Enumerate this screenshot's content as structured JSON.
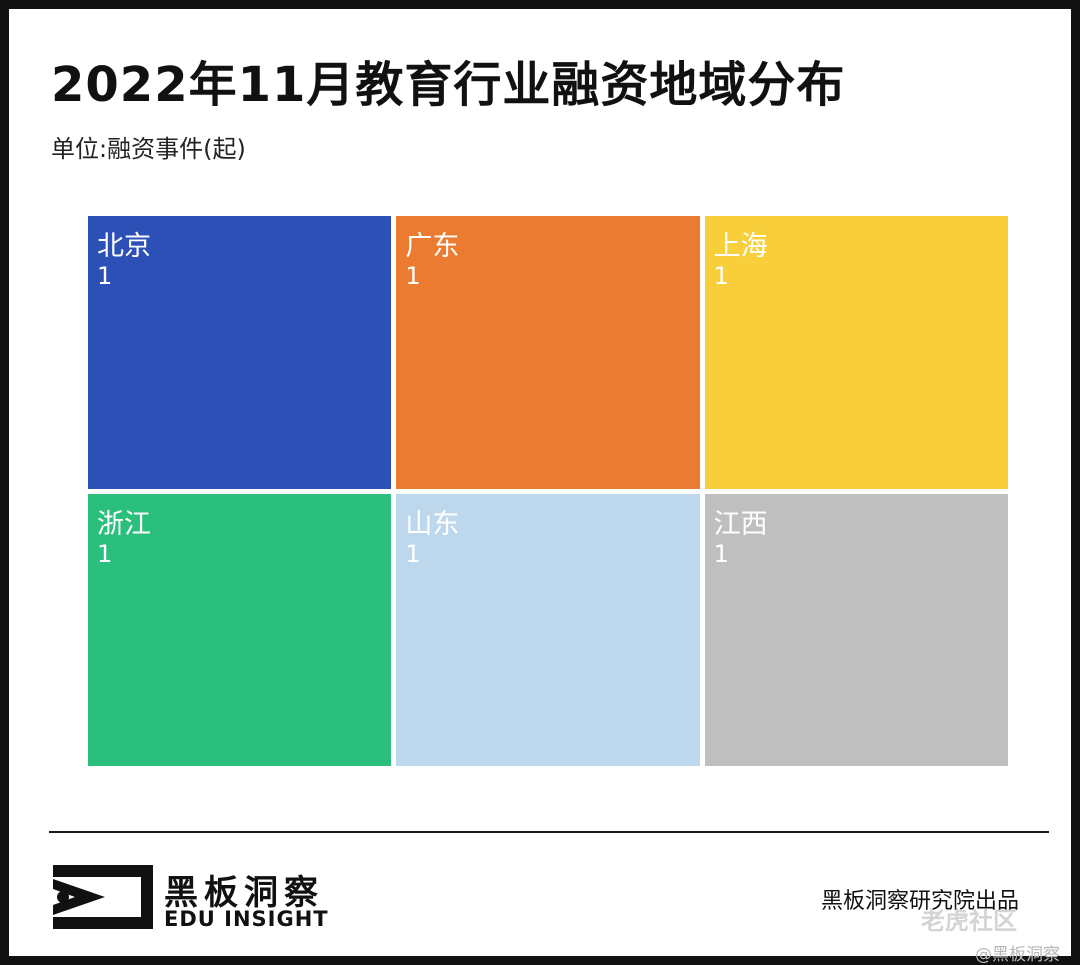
{
  "title": "2022年11月教育行业融资地域分布",
  "unit_label": "单位:融资事件(起)",
  "chart_data": {
    "type": "treemap",
    "title": "2022年11月教育行业融资地域分布",
    "unit": "单位:融资事件(起)",
    "items": [
      {
        "name": "北京",
        "value": 1,
        "color": "#2d50b6",
        "text_color": "#ffffff"
      },
      {
        "name": "广东",
        "value": 1,
        "color": "#ec7b32",
        "text_color": "#ffffff"
      },
      {
        "name": "上海",
        "value": 1,
        "color": "#f8cf3a",
        "text_color": "#ffffff"
      },
      {
        "name": "浙江",
        "value": 1,
        "color": "#2bbf7d",
        "text_color": "#ffffff"
      },
      {
        "name": "山东",
        "value": 1,
        "color": "#bdd7ec",
        "text_color": "#ffffff"
      },
      {
        "name": "江西",
        "value": 1,
        "color": "#bfbfbf",
        "text_color": "#ffffff"
      }
    ]
  },
  "footer": {
    "brand_cn": "黑板洞察",
    "brand_en": "EDU INSIGHT",
    "credit": "黑板洞察研究院出品",
    "watermark": "老虎社区",
    "handle": "@黑板洞察"
  }
}
